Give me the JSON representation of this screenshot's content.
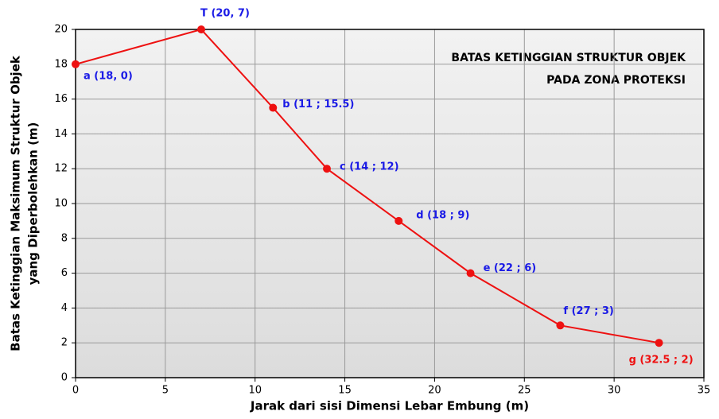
{
  "chart_data": {
    "type": "line",
    "title": [
      "BATAS KETINGGIAN STRUKTUR OBJEK",
      "PADA ZONA PROTEKSI"
    ],
    "xlabel": "Jarak dari sisi Dimensi Lebar Embung  (m)",
    "ylabel": [
      "Batas Ketinggian Maksimum Struktur Objek",
      "yang Diperbolehkan  (m)"
    ],
    "x": [
      0,
      7,
      11,
      14,
      18,
      22,
      27,
      32.5
    ],
    "series": [
      {
        "name": "Batas Ketinggian",
        "color": "#ee1111",
        "values": [
          18,
          20,
          15.5,
          12,
          9,
          6,
          3,
          2
        ],
        "point_labels": [
          "a  (18,  0)",
          "T  (20,  7)",
          "b  (11  ;  15.5)",
          "c  (14  ;  12)",
          "d  (18  ;  9)",
          "e  (22  ;  6)",
          "f  (27  ;  3)",
          "g (32.5  ;  2)"
        ],
        "label_colors": [
          "#1a1ae6",
          "#1a1ae6",
          "#1a1ae6",
          "#1a1ae6",
          "#1a1ae6",
          "#1a1ae6",
          "#1a1ae6",
          "#ee1111"
        ]
      }
    ],
    "xlim": [
      0,
      35
    ],
    "xticks": [
      0,
      5,
      10,
      15,
      20,
      25,
      30,
      35
    ],
    "ylim": [
      0,
      20
    ],
    "yticks": [
      0,
      2,
      4,
      6,
      8,
      10,
      12,
      14,
      16,
      18,
      20
    ],
    "grid": true
  }
}
